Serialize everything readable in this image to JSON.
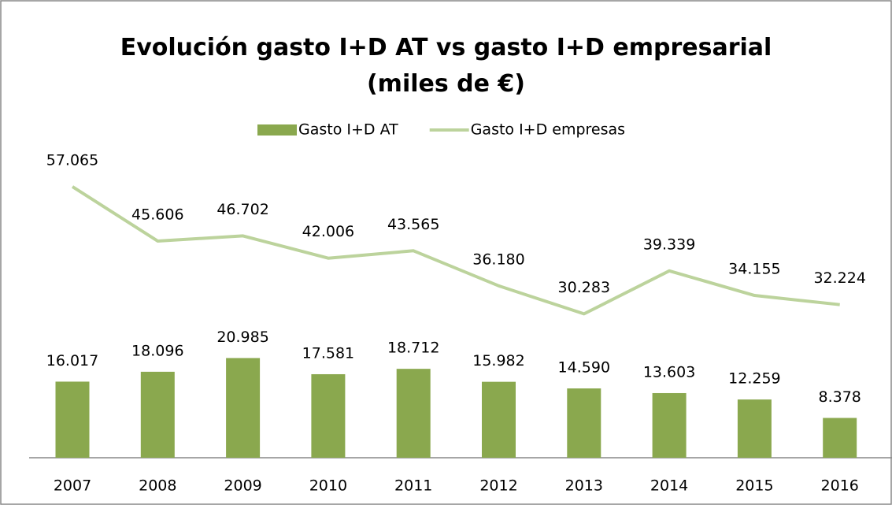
{
  "chart_data": {
    "type": "bar_line",
    "title": "Evolución gasto I+D AT vs gasto I+D empresarial (miles de €)",
    "categories": [
      "2007",
      "2008",
      "2009",
      "2010",
      "2011",
      "2012",
      "2013",
      "2014",
      "2015",
      "2016"
    ],
    "series": [
      {
        "name": "Gasto I+D AT",
        "type": "bar",
        "color": "#8aa84e",
        "values": [
          16017,
          18096,
          20985,
          17581,
          18712,
          15982,
          14590,
          13603,
          12259,
          8378
        ],
        "value_labels": [
          "16.017",
          "18.096",
          "20.985",
          "17.581",
          "18.712",
          "15.982",
          "14.590",
          "13.603",
          "12.259",
          "8.378"
        ]
      },
      {
        "name": "Gasto I+D empresas",
        "type": "line",
        "color": "#bcd39c",
        "values": [
          57065,
          45606,
          46702,
          42006,
          43565,
          36180,
          30283,
          39339,
          34155,
          32224
        ],
        "value_labels": [
          "57.065",
          "45.606",
          "46.702",
          "42.006",
          "43.565",
          "36.180",
          "30.283",
          "39.339",
          "34.155",
          "32.224"
        ]
      }
    ],
    "legend": "top"
  }
}
